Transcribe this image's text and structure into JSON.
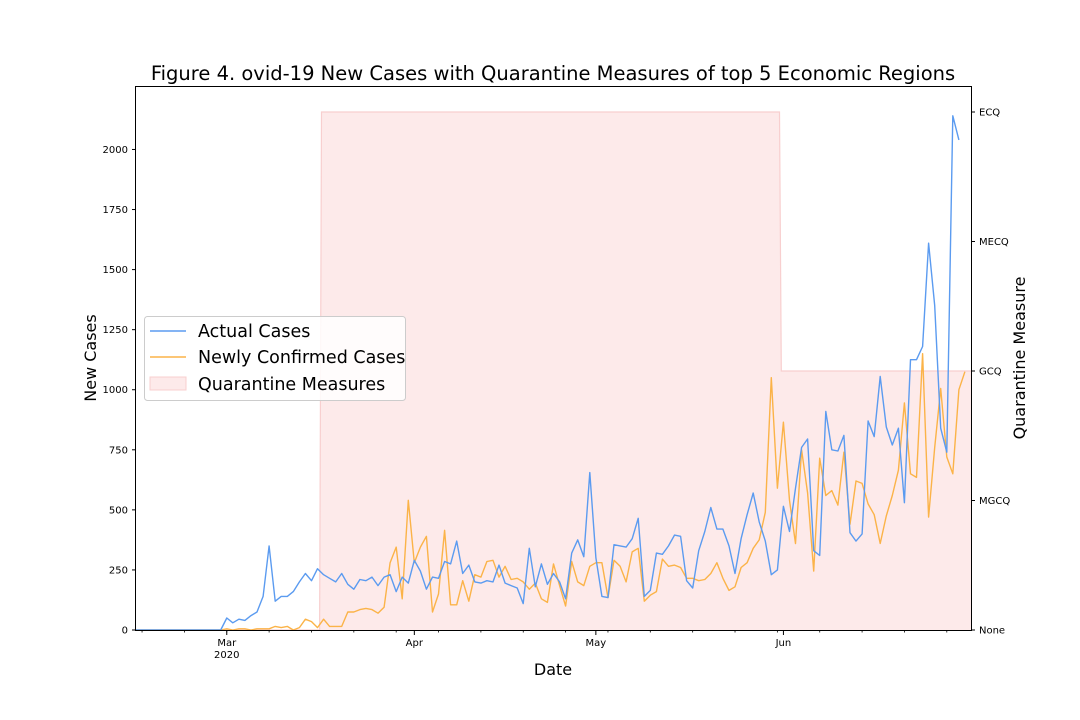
{
  "chart_data": {
    "type": "line",
    "title": "Figure 4. ovid-19 New Cases with Quarantine Measures of top 5 Economic Regions",
    "xlabel": "Date",
    "ylabel": "New Cases",
    "y2label": "Quarantine Measure",
    "x_start": "2020-02-15",
    "x_end": "2020-07-02",
    "ylim": [
      0,
      2260
    ],
    "y_ticks": [
      0,
      250,
      500,
      750,
      1000,
      1250,
      1500,
      1750,
      2000
    ],
    "y2_ticks": [
      "None",
      "MGCQ",
      "GCQ",
      "MECQ",
      "ECQ"
    ],
    "x_ticks": [
      {
        "date": "2020-03-01",
        "label": "Mar",
        "sublabel": "2020"
      },
      {
        "date": "2020-04-01",
        "label": "Apr",
        "sublabel": ""
      },
      {
        "date": "2020-05-01",
        "label": "May",
        "sublabel": ""
      },
      {
        "date": "2020-06-01",
        "label": "Jun",
        "sublabel": ""
      }
    ],
    "legend_position": "center-left",
    "grid": false,
    "colors": {
      "actual": "#5b9bf0",
      "confirmed": "#fbb348",
      "quarantine_fill": "#fdeaea",
      "quarantine_edge": "#f8cfcf"
    },
    "series": [
      {
        "name": "Actual Cases",
        "values": [
          0,
          0,
          0,
          0,
          0,
          0,
          0,
          0,
          0,
          0,
          0,
          0,
          0,
          0,
          0,
          50,
          30,
          45,
          40,
          60,
          75,
          140,
          350,
          120,
          140,
          140,
          160,
          200,
          235,
          205,
          255,
          230,
          215,
          200,
          235,
          190,
          170,
          210,
          205,
          220,
          185,
          220,
          230,
          160,
          220,
          195,
          290,
          245,
          170,
          220,
          215,
          285,
          275,
          370,
          235,
          270,
          200,
          195,
          205,
          200,
          270,
          195,
          185,
          175,
          110,
          340,
          180,
          275,
          190,
          235,
          200,
          130,
          320,
          375,
          305,
          655,
          300,
          140,
          135,
          355,
          350,
          345,
          380,
          465,
          140,
          165,
          320,
          315,
          350,
          395,
          390,
          205,
          175,
          330,
          410,
          510,
          420,
          420,
          350,
          235,
          380,
          480,
          570,
          450,
          370,
          230,
          250,
          515,
          410,
          590,
          760,
          795,
          330,
          310,
          910,
          750,
          745,
          810,
          405,
          370,
          400,
          870,
          805,
          1055,
          845,
          770,
          840,
          530,
          1125,
          1125,
          1180,
          1610,
          1350,
          840,
          740,
          2140,
          2040
        ]
      },
      {
        "name": "Newly Confirmed Cases",
        "values": [
          0,
          0,
          0,
          0,
          0,
          0,
          0,
          0,
          0,
          0,
          0,
          0,
          0,
          0,
          0,
          5,
          0,
          5,
          5,
          0,
          5,
          5,
          5,
          15,
          10,
          15,
          0,
          10,
          45,
          35,
          10,
          45,
          15,
          15,
          15,
          75,
          75,
          85,
          90,
          85,
          70,
          95,
          280,
          345,
          130,
          540,
          280,
          345,
          390,
          75,
          150,
          415,
          105,
          105,
          205,
          120,
          230,
          220,
          285,
          290,
          220,
          265,
          210,
          215,
          200,
          170,
          195,
          130,
          115,
          275,
          185,
          100,
          285,
          200,
          185,
          265,
          280,
          280,
          135,
          290,
          265,
          200,
          325,
          340,
          120,
          145,
          160,
          295,
          265,
          270,
          260,
          215,
          215,
          205,
          210,
          235,
          280,
          215,
          165,
          180,
          260,
          280,
          340,
          375,
          490,
          1050,
          590,
          865,
          540,
          360,
          750,
          570,
          245,
          715,
          560,
          580,
          520,
          740,
          440,
          620,
          610,
          525,
          480,
          360,
          475,
          560,
          665,
          945,
          650,
          635,
          1150,
          470,
          760,
          1005,
          720,
          650,
          1000,
          1075
        ]
      }
    ],
    "quarantine": {
      "name": "Quarantine Measures",
      "periods": [
        {
          "start": "2020-02-15",
          "end": "2020-03-16",
          "level": "None"
        },
        {
          "start": "2020-03-17",
          "end": "2020-05-31",
          "level": "ECQ"
        },
        {
          "start": "2020-06-01",
          "end": "2020-07-02",
          "level": "GCQ"
        }
      ]
    }
  }
}
